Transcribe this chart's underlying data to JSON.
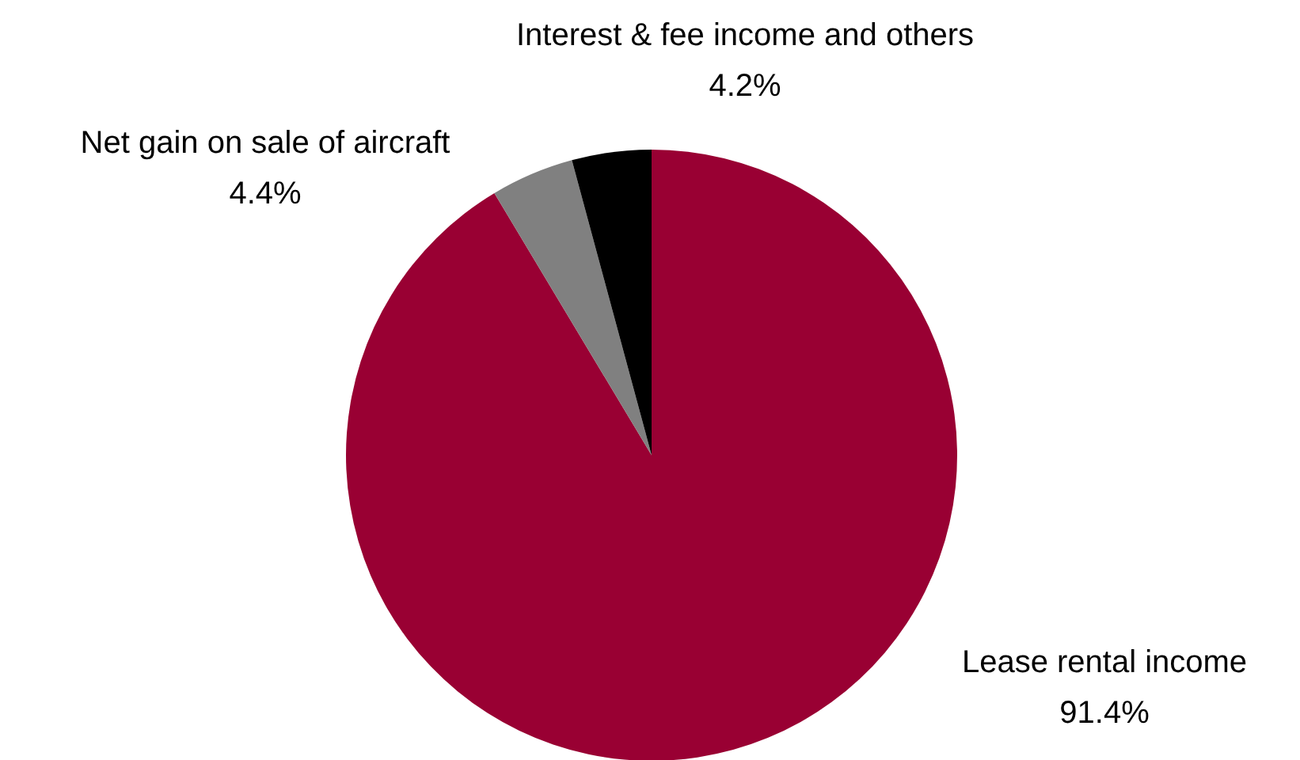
{
  "chart_data": {
    "type": "pie",
    "categories": [
      "Lease rental income",
      "Net gain on sale of aircraft",
      "Interest & fee income and others"
    ],
    "values": [
      91.4,
      4.4,
      4.2
    ],
    "colors": [
      "#990033",
      "#808080",
      "#000000"
    ],
    "value_labels": [
      "91.4%",
      "4.4%",
      "4.2%"
    ]
  }
}
